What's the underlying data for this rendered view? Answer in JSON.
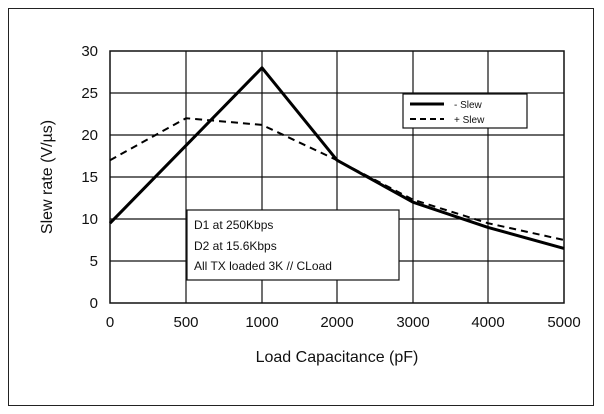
{
  "chart_data": {
    "type": "line",
    "title": "",
    "xlabel": "Load Capacitance (pF)",
    "ylabel": "Slew rate (V/µs)",
    "x_ticks": [
      "0",
      "500",
      "1000",
      "2000",
      "3000",
      "4000",
      "5000"
    ],
    "y_ticks": [
      "0",
      "5",
      "10",
      "15",
      "20",
      "25",
      "30"
    ],
    "ylim": [
      0,
      30
    ],
    "grid": true,
    "legend_position": "top-right",
    "series": [
      {
        "name": "- Slew",
        "style": "solid",
        "color": "#000000",
        "x": [
          0,
          1000,
          2000,
          3000,
          4000,
          5000
        ],
        "y": [
          9.5,
          28,
          17,
          12,
          9,
          6.5
        ]
      },
      {
        "name": "+ Slew",
        "style": "dashed",
        "color": "#000000",
        "x": [
          0,
          500,
          1000,
          2000,
          3000,
          4000,
          5000
        ],
        "y": [
          17,
          22,
          21.2,
          17,
          12.3,
          9.5,
          7.5
        ]
      }
    ],
    "annotation": {
      "lines": [
        "D1 at 250Kbps",
        "D2 at 15.6Kbps",
        "All TX loaded 3K // CLoad"
      ]
    }
  }
}
